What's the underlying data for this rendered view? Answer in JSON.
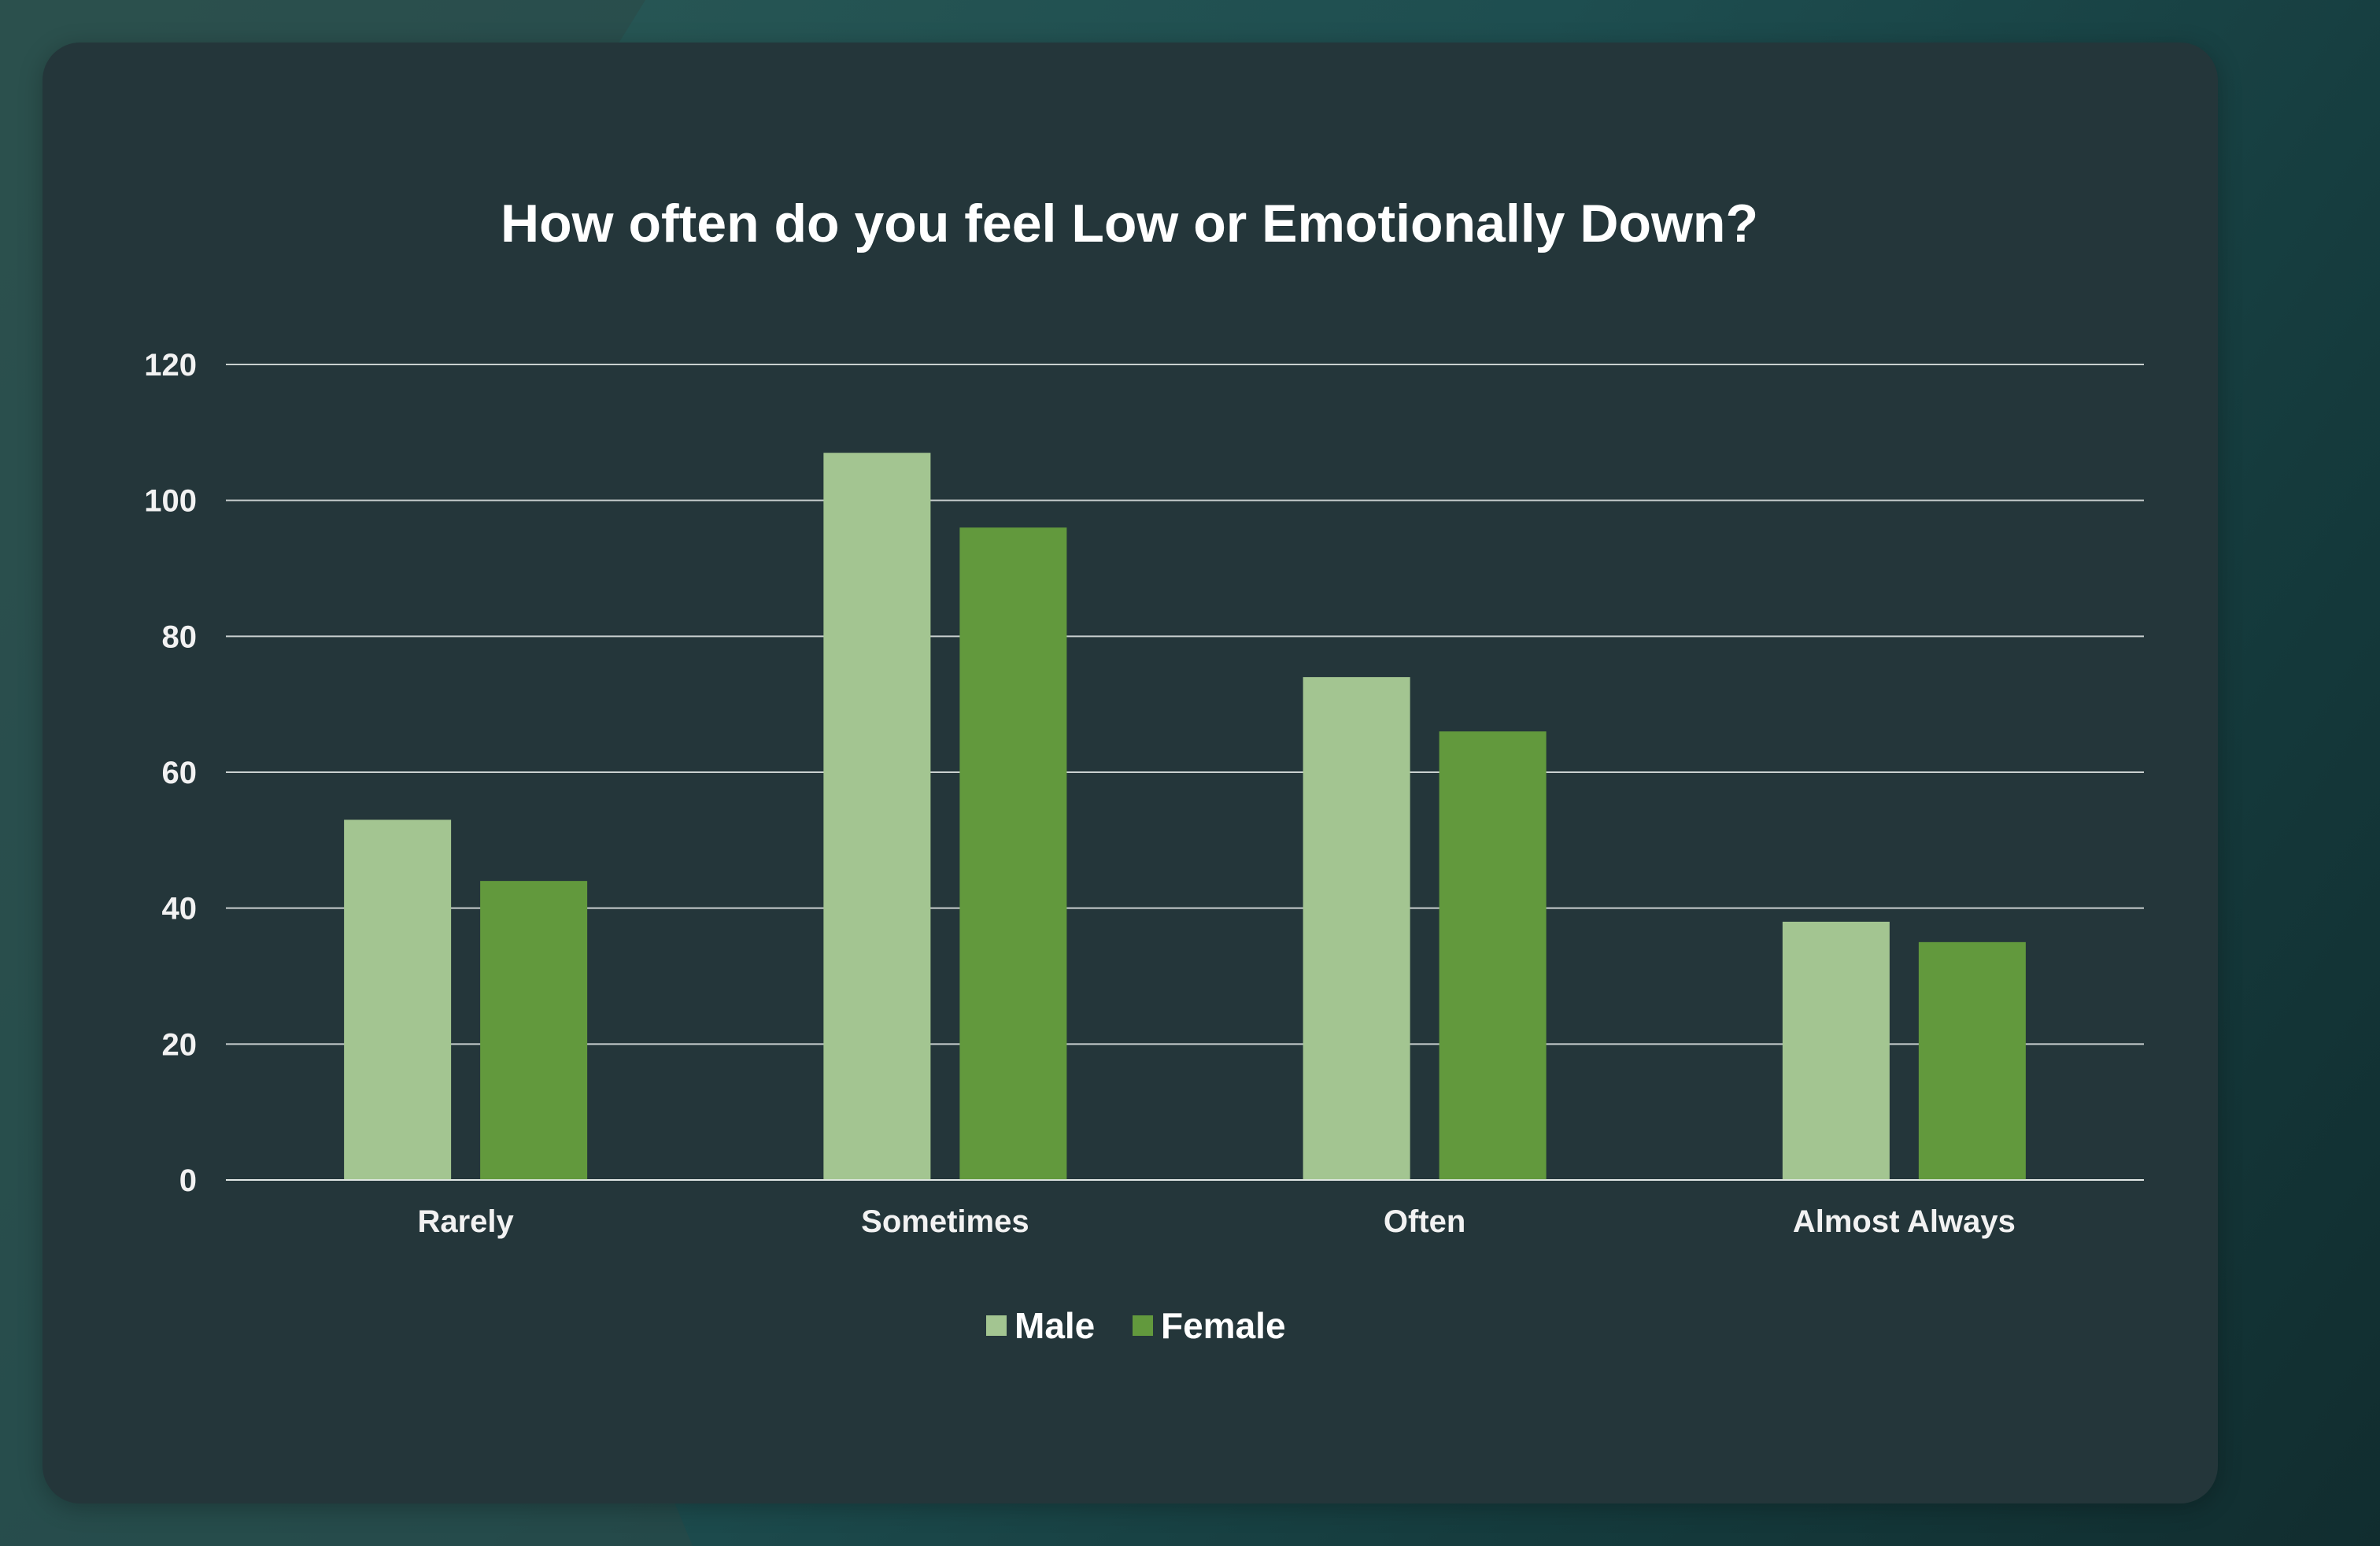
{
  "colors": {
    "male": "#a3c591",
    "female": "#62993d",
    "card_background": "#24363a",
    "grid": "#e6ecea",
    "text": "#ffffff"
  },
  "chart_data": {
    "type": "bar",
    "title": "How often do you feel Low or Emotionally Down?",
    "xlabel": "",
    "ylabel": "",
    "categories": [
      "Rarely",
      "Sometimes",
      "Often",
      "Almost Always"
    ],
    "series": [
      {
        "name": "Male",
        "values": [
          53,
          107,
          74,
          38
        ],
        "color": "#a3c591"
      },
      {
        "name": "Female",
        "values": [
          44,
          96,
          66,
          35
        ],
        "color": "#62993d"
      }
    ],
    "ylim": [
      0,
      120
    ],
    "yticks": [
      0,
      20,
      40,
      60,
      80,
      100,
      120
    ],
    "grid": true,
    "legend_position": "bottom-center"
  }
}
